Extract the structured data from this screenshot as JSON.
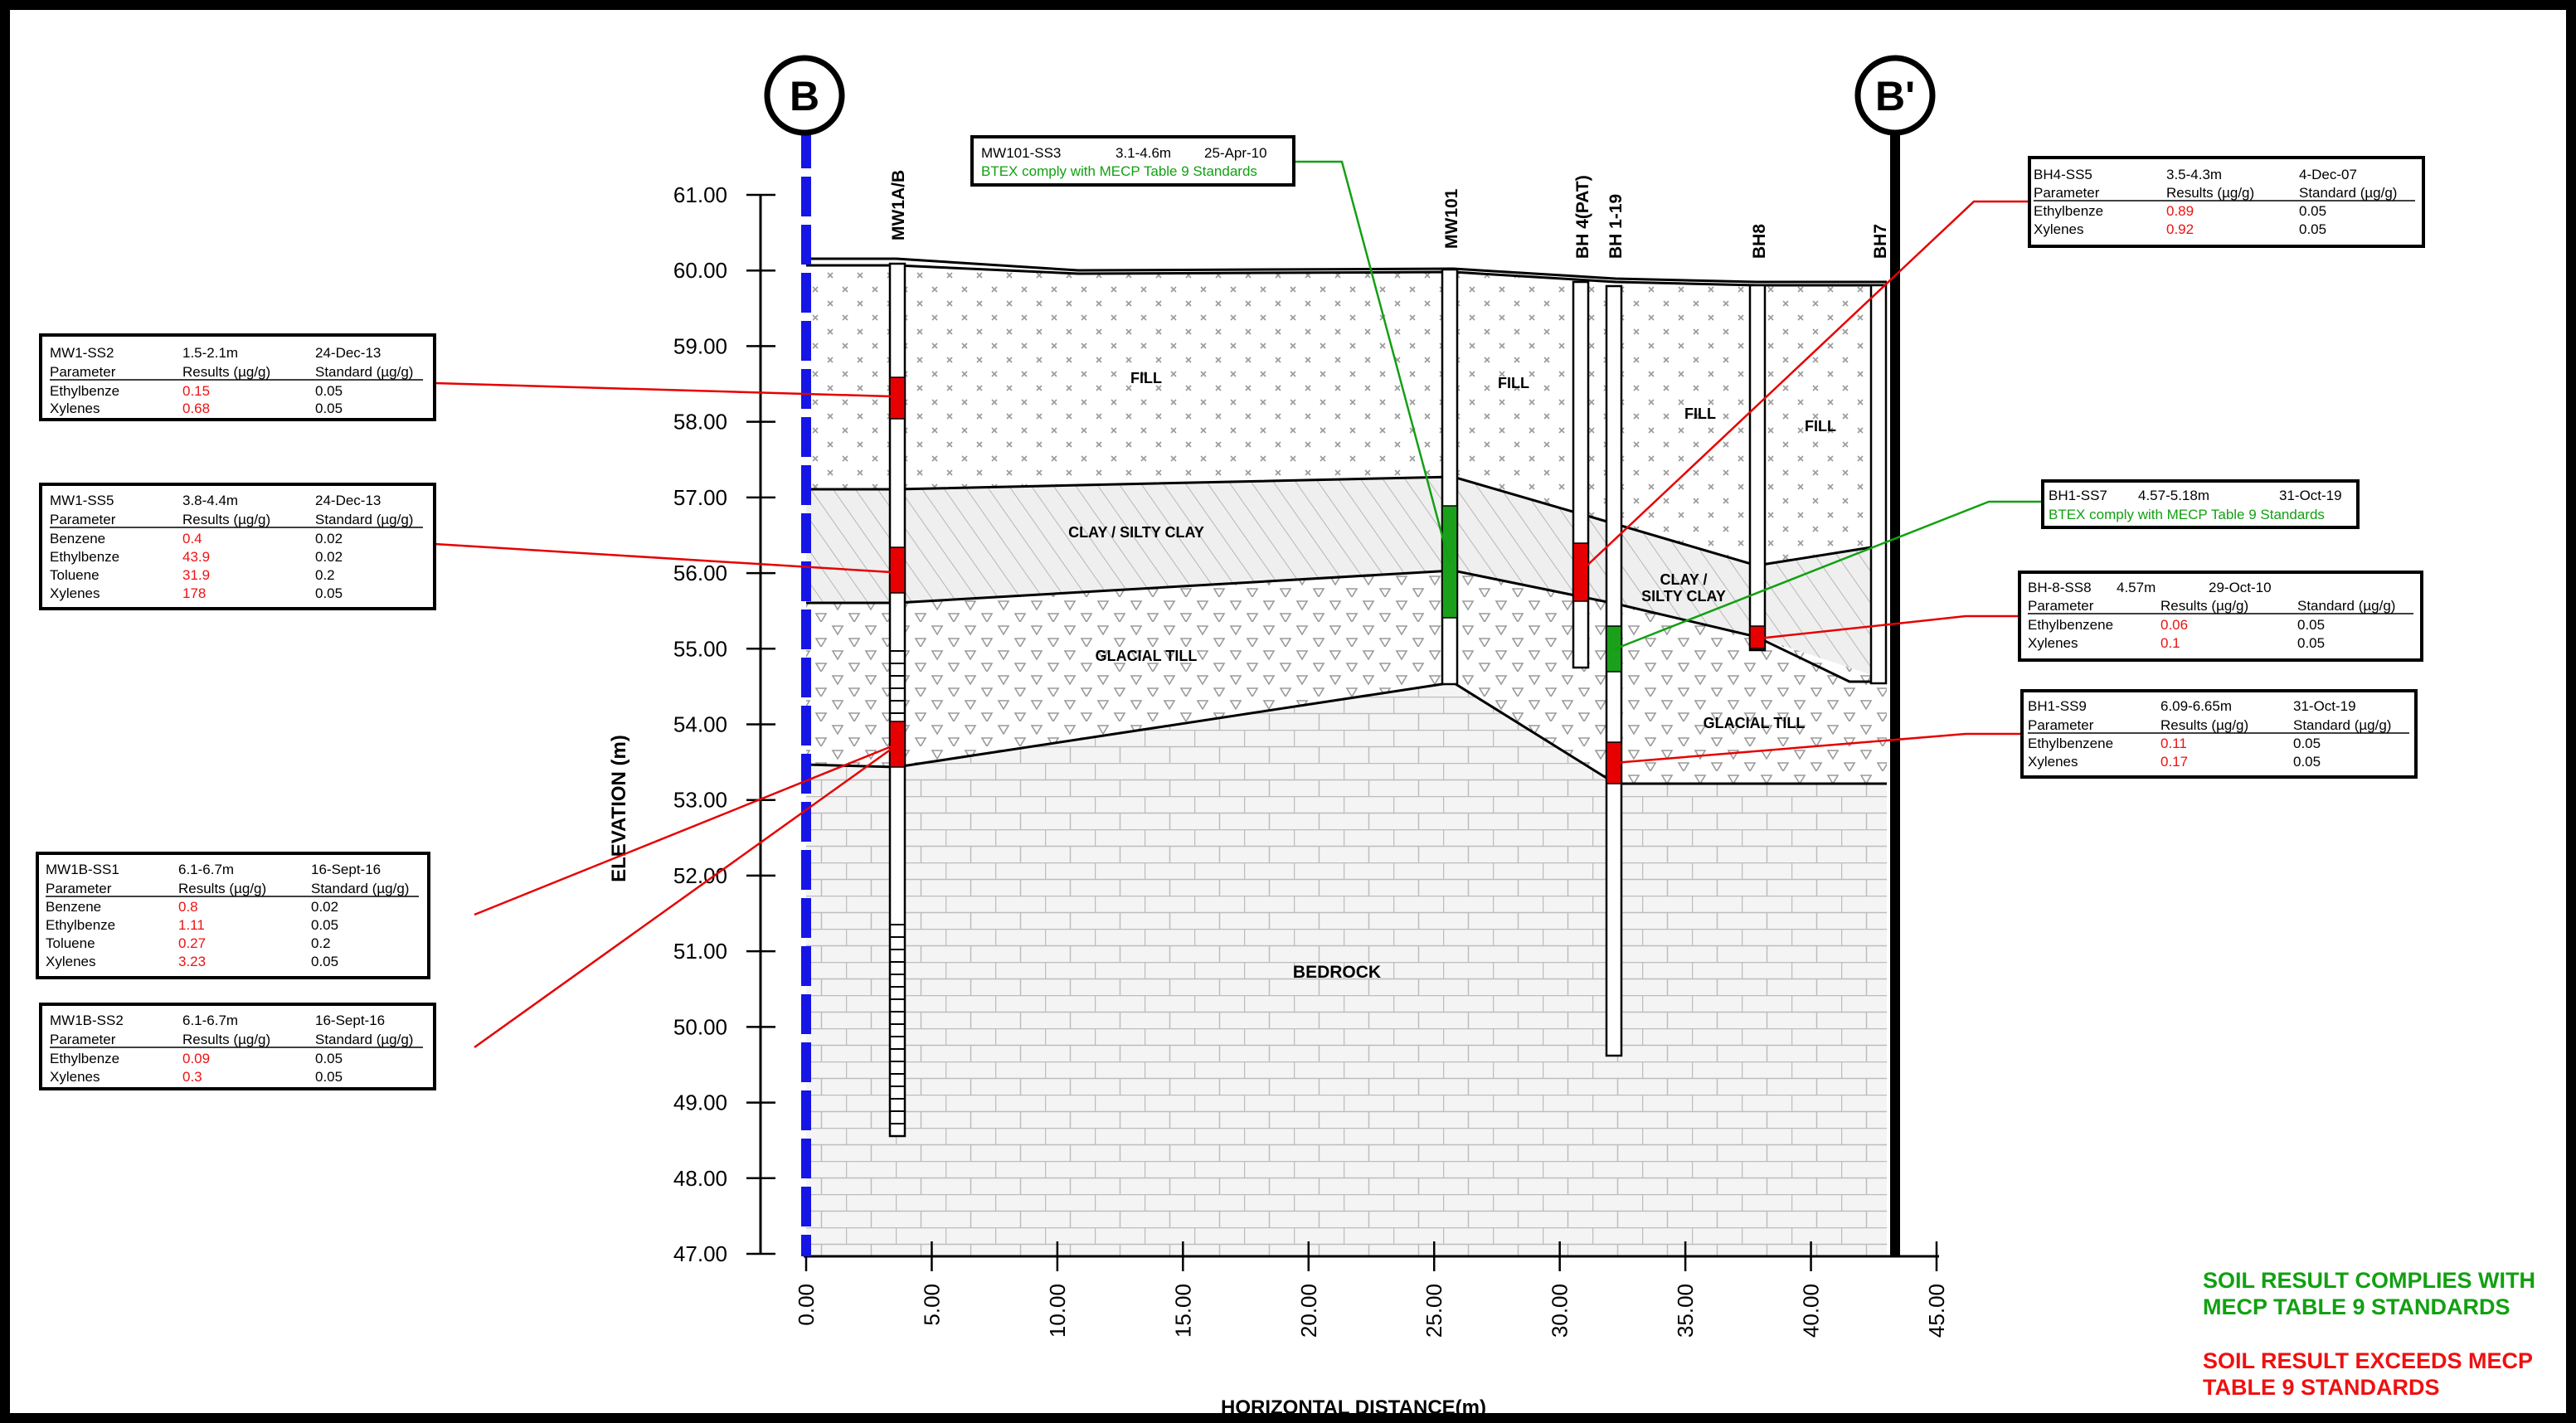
{
  "section": {
    "left_marker": "B",
    "right_marker": "B'"
  },
  "axes": {
    "y_label": "ELEVATION (m)",
    "x_label": "HORIZONTAL DISTANCE(m)",
    "y_ticks": [
      "61.00",
      "60.00",
      "59.00",
      "58.00",
      "57.00",
      "56.00",
      "55.00",
      "54.00",
      "53.00",
      "52.00",
      "51.00",
      "50.00",
      "49.00",
      "48.00",
      "47.00"
    ],
    "x_ticks": [
      "0.00",
      "5.00",
      "10.00",
      "15.00",
      "20.00",
      "25.00",
      "30.00",
      "35.00",
      "40.00",
      "45.00"
    ]
  },
  "boreholes": [
    {
      "name": "MW1A/B"
    },
    {
      "name": "MW101"
    },
    {
      "name": "BH 4(PAT)"
    },
    {
      "name": "BH 1-19"
    },
    {
      "name": "BH8"
    },
    {
      "name": "BH7"
    }
  ],
  "layers": {
    "fill": "FILL",
    "clay": "CLAY / SILTY CLAY",
    "clay_line1": "CLAY /",
    "clay_line2": "SILTY CLAY",
    "till": "GLACIAL TILL",
    "bedrock": "BEDROCK"
  },
  "sample_boxes": [
    {
      "id": "MW1-SS2",
      "depth": "1.5-2.1m",
      "date": "24-Dec-13",
      "header": [
        "Parameter",
        "Results (µg/g)",
        "Standard (µg/g)"
      ],
      "rows": [
        [
          "Ethylbenze",
          "0.15",
          "0.05"
        ],
        [
          "Xylenes",
          "0.68",
          "0.05"
        ]
      ]
    },
    {
      "id": "MW1-SS5",
      "depth": "3.8-4.4m",
      "date": "24-Dec-13",
      "header": [
        "Parameter",
        "Results (µg/g)",
        "Standard (µg/g)"
      ],
      "rows": [
        [
          "Benzene",
          "0.4",
          "0.02"
        ],
        [
          "Ethylbenze",
          "43.9",
          "0.02"
        ],
        [
          "Toluene",
          "31.9",
          "0.2"
        ],
        [
          "Xylenes",
          "178",
          "0.05"
        ]
      ]
    },
    {
      "id": "MW1B-SS1",
      "depth": "6.1-6.7m",
      "date": "16-Sept-16",
      "header": [
        "Parameter",
        "Results (µg/g)",
        "Standard (µg/g)"
      ],
      "rows": [
        [
          "Benzene",
          "0.8",
          "0.02"
        ],
        [
          "Ethylbenze",
          "1.11",
          "0.05"
        ],
        [
          "Toluene",
          "0.27",
          "0.2"
        ],
        [
          "Xylenes",
          "3.23",
          "0.05"
        ]
      ]
    },
    {
      "id": "MW1B-SS2",
      "depth": "6.1-6.7m",
      "date": "16-Sept-16",
      "header": [
        "Parameter",
        "Results (µg/g)",
        "Standard (µg/g)"
      ],
      "rows": [
        [
          "Ethylbenze",
          "0.09",
          "0.05"
        ],
        [
          "Xylenes",
          "0.3",
          "0.05"
        ]
      ]
    },
    {
      "id": "MW101-SS3",
      "depth": "3.1-4.6m",
      "date": "25-Apr-10",
      "note": "BTEX comply with MECP Table 9 Standards"
    },
    {
      "id": "BH4-SS5",
      "depth": "3.5-4.3m",
      "date": "4-Dec-07",
      "header": [
        "Parameter",
        "Results (µg/g)",
        "Standard (µg/g)"
      ],
      "rows": [
        [
          "Ethylbenze",
          "0.89",
          "0.05"
        ],
        [
          "Xylenes",
          "0.92",
          "0.05"
        ]
      ]
    },
    {
      "id": "BH1-SS7",
      "depth": "4.57-5.18m",
      "date": "31-Oct-19",
      "note": "BTEX comply with MECP Table 9 Standards"
    },
    {
      "id": "BH-8-SS8",
      "depth": "4.57m",
      "date": "29-Oct-10",
      "header": [
        "Parameter",
        "Results (µg/g)",
        "Standard (µg/g)"
      ],
      "rows": [
        [
          "Ethylbenzene",
          "0.06",
          "0.05"
        ],
        [
          "Xylenes",
          "0.1",
          "0.05"
        ]
      ]
    },
    {
      "id": "BH1-SS9",
      "depth": "6.09-6.65m",
      "date": "31-Oct-19",
      "header": [
        "Parameter",
        "Results (µg/g)",
        "Standard (µg/g)"
      ],
      "rows": [
        [
          "Ethylbenzene",
          "0.11",
          "0.05"
        ],
        [
          "Xylenes",
          "0.17",
          "0.05"
        ]
      ]
    }
  ],
  "legend": {
    "complies_1": "SOIL RESULT COMPLIES WITH",
    "complies_2": "MECP TABLE 9 STANDARDS",
    "exceeds_1": "SOIL RESULT EXCEEDS MECP",
    "exceeds_2": "TABLE 9 STANDARDS",
    "complies_color": "#12a012",
    "exceeds_color": "#ee1111"
  }
}
